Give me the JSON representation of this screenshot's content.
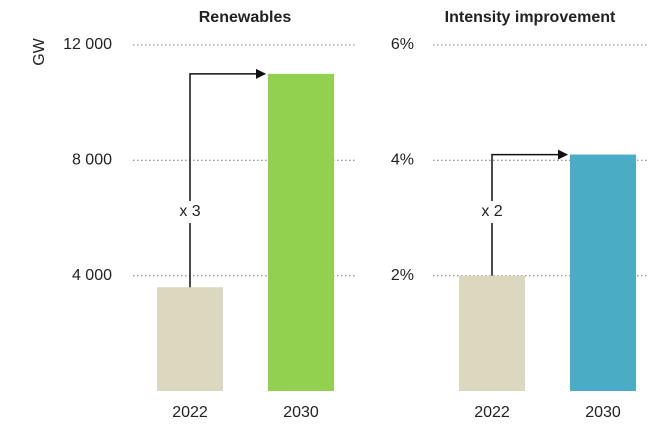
{
  "chart_data": [
    {
      "type": "bar",
      "title": "Renewables",
      "y_label": "GW",
      "annotation": "x 3",
      "categories": [
        "2022",
        "2030"
      ],
      "values": [
        3600,
        11000
      ],
      "colors": [
        "#dcd8c0",
        "#92d050"
      ],
      "ylim": [
        0,
        12000
      ],
      "yticks": [
        {
          "value": 4000,
          "label": "4 000"
        },
        {
          "value": 8000,
          "label": "8 000"
        },
        {
          "value": 12000,
          "label": "12 000"
        }
      ],
      "grid": true
    },
    {
      "type": "bar",
      "title": "Intensity improvement",
      "annotation": "x 2",
      "categories": [
        "2022",
        "2030"
      ],
      "values": [
        2.0,
        4.1
      ],
      "colors": [
        "#dcd8c0",
        "#4bacc6"
      ],
      "ylim": [
        0,
        6
      ],
      "yticks": [
        {
          "value": 2,
          "label": "2%"
        },
        {
          "value": 4,
          "label": "4%"
        },
        {
          "value": 6,
          "label": "6%"
        }
      ],
      "grid": true
    }
  ]
}
